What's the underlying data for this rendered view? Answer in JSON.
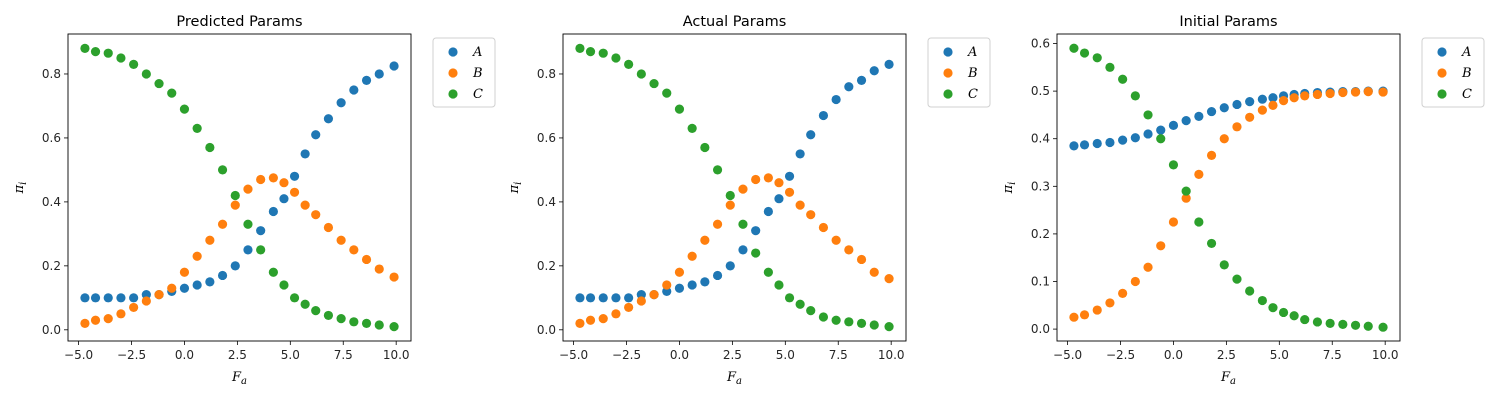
{
  "chart_data": [
    {
      "type": "scatter",
      "title": "Predicted Params",
      "xlabel": "F_a",
      "ylabel": "π_i",
      "xlim": [
        -5.5,
        10.7
      ],
      "ylim": [
        -0.035,
        0.925
      ],
      "xticks": [
        -5.0,
        -2.5,
        0.0,
        2.5,
        5.0,
        7.5,
        10.0
      ],
      "yticks": [
        0.0,
        0.2,
        0.4,
        0.6,
        0.8
      ],
      "legend_position": "outside-top-right",
      "grid": false,
      "series": [
        {
          "name": "A",
          "color": "#1f77b4",
          "points": [
            [
              -4.7,
              0.1
            ],
            [
              -4.2,
              0.1
            ],
            [
              -3.6,
              0.1
            ],
            [
              -3.0,
              0.1
            ],
            [
              -2.4,
              0.1
            ],
            [
              -1.8,
              0.11
            ],
            [
              -1.2,
              0.11
            ],
            [
              -0.6,
              0.12
            ],
            [
              0.0,
              0.13
            ],
            [
              0.6,
              0.14
            ],
            [
              1.2,
              0.15
            ],
            [
              1.8,
              0.17
            ],
            [
              2.4,
              0.2
            ],
            [
              3.0,
              0.25
            ],
            [
              3.6,
              0.31
            ],
            [
              4.2,
              0.37
            ],
            [
              4.7,
              0.41
            ],
            [
              5.2,
              0.48
            ],
            [
              5.7,
              0.55
            ],
            [
              6.2,
              0.61
            ],
            [
              6.8,
              0.66
            ],
            [
              7.4,
              0.71
            ],
            [
              8.0,
              0.75
            ],
            [
              8.6,
              0.78
            ],
            [
              9.2,
              0.8
            ],
            [
              9.9,
              0.825
            ]
          ]
        },
        {
          "name": "B",
          "color": "#ff7f0e",
          "points": [
            [
              -4.7,
              0.02
            ],
            [
              -4.2,
              0.03
            ],
            [
              -3.6,
              0.035
            ],
            [
              -3.0,
              0.05
            ],
            [
              -2.4,
              0.07
            ],
            [
              -1.8,
              0.09
            ],
            [
              -1.2,
              0.11
            ],
            [
              -0.6,
              0.13
            ],
            [
              0.0,
              0.18
            ],
            [
              0.6,
              0.23
            ],
            [
              1.2,
              0.28
            ],
            [
              1.8,
              0.33
            ],
            [
              2.4,
              0.39
            ],
            [
              3.0,
              0.44
            ],
            [
              3.6,
              0.47
            ],
            [
              4.2,
              0.475
            ],
            [
              4.7,
              0.46
            ],
            [
              5.2,
              0.43
            ],
            [
              5.7,
              0.39
            ],
            [
              6.2,
              0.36
            ],
            [
              6.8,
              0.32
            ],
            [
              7.4,
              0.28
            ],
            [
              8.0,
              0.25
            ],
            [
              8.6,
              0.22
            ],
            [
              9.2,
              0.19
            ],
            [
              9.9,
              0.165
            ]
          ]
        },
        {
          "name": "C",
          "color": "#2ca02c",
          "points": [
            [
              -4.7,
              0.88
            ],
            [
              -4.2,
              0.87
            ],
            [
              -3.6,
              0.865
            ],
            [
              -3.0,
              0.85
            ],
            [
              -2.4,
              0.83
            ],
            [
              -1.8,
              0.8
            ],
            [
              -1.2,
              0.77
            ],
            [
              -0.6,
              0.74
            ],
            [
              0.0,
              0.69
            ],
            [
              0.6,
              0.63
            ],
            [
              1.2,
              0.57
            ],
            [
              1.8,
              0.5
            ],
            [
              2.4,
              0.42
            ],
            [
              3.0,
              0.33
            ],
            [
              3.6,
              0.25
            ],
            [
              4.2,
              0.18
            ],
            [
              4.7,
              0.14
            ],
            [
              5.2,
              0.1
            ],
            [
              5.7,
              0.08
            ],
            [
              6.2,
              0.06
            ],
            [
              6.8,
              0.045
            ],
            [
              7.4,
              0.035
            ],
            [
              8.0,
              0.025
            ],
            [
              8.6,
              0.02
            ],
            [
              9.2,
              0.015
            ],
            [
              9.9,
              0.01
            ]
          ]
        }
      ]
    },
    {
      "type": "scatter",
      "title": "Actual Params",
      "xlabel": "F_a",
      "ylabel": "π_i",
      "xlim": [
        -5.5,
        10.7
      ],
      "ylim": [
        -0.035,
        0.925
      ],
      "xticks": [
        -5.0,
        -2.5,
        0.0,
        2.5,
        5.0,
        7.5,
        10.0
      ],
      "yticks": [
        0.0,
        0.2,
        0.4,
        0.6,
        0.8
      ],
      "legend_position": "outside-top-right",
      "grid": false,
      "series": [
        {
          "name": "A",
          "color": "#1f77b4",
          "points": [
            [
              -4.7,
              0.1
            ],
            [
              -4.2,
              0.1
            ],
            [
              -3.6,
              0.1
            ],
            [
              -3.0,
              0.1
            ],
            [
              -2.4,
              0.1
            ],
            [
              -1.8,
              0.11
            ],
            [
              -1.2,
              0.11
            ],
            [
              -0.6,
              0.12
            ],
            [
              0.0,
              0.13
            ],
            [
              0.6,
              0.14
            ],
            [
              1.2,
              0.15
            ],
            [
              1.8,
              0.17
            ],
            [
              2.4,
              0.2
            ],
            [
              3.0,
              0.25
            ],
            [
              3.6,
              0.31
            ],
            [
              4.2,
              0.37
            ],
            [
              4.7,
              0.41
            ],
            [
              5.2,
              0.48
            ],
            [
              5.7,
              0.55
            ],
            [
              6.2,
              0.61
            ],
            [
              6.8,
              0.67
            ],
            [
              7.4,
              0.72
            ],
            [
              8.0,
              0.76
            ],
            [
              8.6,
              0.78
            ],
            [
              9.2,
              0.81
            ],
            [
              9.9,
              0.83
            ]
          ]
        },
        {
          "name": "B",
          "color": "#ff7f0e",
          "points": [
            [
              -4.7,
              0.02
            ],
            [
              -4.2,
              0.03
            ],
            [
              -3.6,
              0.035
            ],
            [
              -3.0,
              0.05
            ],
            [
              -2.4,
              0.07
            ],
            [
              -1.8,
              0.09
            ],
            [
              -1.2,
              0.11
            ],
            [
              -0.6,
              0.14
            ],
            [
              0.0,
              0.18
            ],
            [
              0.6,
              0.23
            ],
            [
              1.2,
              0.28
            ],
            [
              1.8,
              0.33
            ],
            [
              2.4,
              0.39
            ],
            [
              3.0,
              0.44
            ],
            [
              3.6,
              0.47
            ],
            [
              4.2,
              0.475
            ],
            [
              4.7,
              0.46
            ],
            [
              5.2,
              0.43
            ],
            [
              5.7,
              0.39
            ],
            [
              6.2,
              0.36
            ],
            [
              6.8,
              0.32
            ],
            [
              7.4,
              0.28
            ],
            [
              8.0,
              0.25
            ],
            [
              8.6,
              0.22
            ],
            [
              9.2,
              0.18
            ],
            [
              9.9,
              0.16
            ]
          ]
        },
        {
          "name": "C",
          "color": "#2ca02c",
          "points": [
            [
              -4.7,
              0.88
            ],
            [
              -4.2,
              0.87
            ],
            [
              -3.6,
              0.865
            ],
            [
              -3.0,
              0.85
            ],
            [
              -2.4,
              0.83
            ],
            [
              -1.8,
              0.8
            ],
            [
              -1.2,
              0.77
            ],
            [
              -0.6,
              0.74
            ],
            [
              0.0,
              0.69
            ],
            [
              0.6,
              0.63
            ],
            [
              1.2,
              0.57
            ],
            [
              1.8,
              0.5
            ],
            [
              2.4,
              0.42
            ],
            [
              3.0,
              0.33
            ],
            [
              3.6,
              0.24
            ],
            [
              4.2,
              0.18
            ],
            [
              4.7,
              0.14
            ],
            [
              5.2,
              0.1
            ],
            [
              5.7,
              0.08
            ],
            [
              6.2,
              0.06
            ],
            [
              6.8,
              0.04
            ],
            [
              7.4,
              0.03
            ],
            [
              8.0,
              0.025
            ],
            [
              8.6,
              0.02
            ],
            [
              9.2,
              0.015
            ],
            [
              9.9,
              0.01
            ]
          ]
        }
      ]
    },
    {
      "type": "scatter",
      "title": "Initial Params",
      "xlabel": "F_a",
      "ylabel": "π_i",
      "xlim": [
        -5.5,
        10.7
      ],
      "ylim": [
        -0.025,
        0.62
      ],
      "xticks": [
        -5.0,
        -2.5,
        0.0,
        2.5,
        5.0,
        7.5,
        10.0
      ],
      "yticks": [
        0.0,
        0.1,
        0.2,
        0.3,
        0.4,
        0.5,
        0.6
      ],
      "legend_position": "outside-top-right",
      "grid": false,
      "series": [
        {
          "name": "A",
          "color": "#1f77b4",
          "points": [
            [
              -4.7,
              0.385
            ],
            [
              -4.2,
              0.387
            ],
            [
              -3.6,
              0.39
            ],
            [
              -3.0,
              0.392
            ],
            [
              -2.4,
              0.397
            ],
            [
              -1.8,
              0.402
            ],
            [
              -1.2,
              0.41
            ],
            [
              -0.6,
              0.418
            ],
            [
              0.0,
              0.428
            ],
            [
              0.6,
              0.438
            ],
            [
              1.2,
              0.447
            ],
            [
              1.8,
              0.457
            ],
            [
              2.4,
              0.465
            ],
            [
              3.0,
              0.472
            ],
            [
              3.6,
              0.478
            ],
            [
              4.2,
              0.483
            ],
            [
              4.7,
              0.486
            ],
            [
              5.2,
              0.49
            ],
            [
              5.7,
              0.493
            ],
            [
              6.2,
              0.495
            ],
            [
              6.8,
              0.497
            ],
            [
              7.4,
              0.498
            ],
            [
              8.0,
              0.499
            ],
            [
              8.6,
              0.499
            ],
            [
              9.2,
              0.5
            ],
            [
              9.9,
              0.5
            ]
          ]
        },
        {
          "name": "B",
          "color": "#ff7f0e",
          "points": [
            [
              -4.7,
              0.025
            ],
            [
              -4.2,
              0.03
            ],
            [
              -3.6,
              0.04
            ],
            [
              -3.0,
              0.055
            ],
            [
              -2.4,
              0.075
            ],
            [
              -1.8,
              0.1
            ],
            [
              -1.2,
              0.13
            ],
            [
              -0.6,
              0.175
            ],
            [
              0.0,
              0.225
            ],
            [
              0.6,
              0.275
            ],
            [
              1.2,
              0.325
            ],
            [
              1.8,
              0.365
            ],
            [
              2.4,
              0.4
            ],
            [
              3.0,
              0.425
            ],
            [
              3.6,
              0.445
            ],
            [
              4.2,
              0.46
            ],
            [
              4.7,
              0.47
            ],
            [
              5.2,
              0.48
            ],
            [
              5.7,
              0.486
            ],
            [
              6.2,
              0.49
            ],
            [
              6.8,
              0.493
            ],
            [
              7.4,
              0.495
            ],
            [
              8.0,
              0.497
            ],
            [
              8.6,
              0.498
            ],
            [
              9.2,
              0.499
            ],
            [
              9.9,
              0.498
            ]
          ]
        },
        {
          "name": "C",
          "color": "#2ca02c",
          "points": [
            [
              -4.7,
              0.59
            ],
            [
              -4.2,
              0.58
            ],
            [
              -3.6,
              0.57
            ],
            [
              -3.0,
              0.55
            ],
            [
              -2.4,
              0.525
            ],
            [
              -1.8,
              0.49
            ],
            [
              -1.2,
              0.45
            ],
            [
              -0.6,
              0.4
            ],
            [
              0.0,
              0.345
            ],
            [
              0.6,
              0.29
            ],
            [
              1.2,
              0.225
            ],
            [
              1.8,
              0.18
            ],
            [
              2.4,
              0.135
            ],
            [
              3.0,
              0.105
            ],
            [
              3.6,
              0.08
            ],
            [
              4.2,
              0.06
            ],
            [
              4.7,
              0.045
            ],
            [
              5.2,
              0.035
            ],
            [
              5.7,
              0.028
            ],
            [
              6.2,
              0.02
            ],
            [
              6.8,
              0.015
            ],
            [
              7.4,
              0.012
            ],
            [
              8.0,
              0.01
            ],
            [
              8.6,
              0.008
            ],
            [
              9.2,
              0.006
            ],
            [
              9.9,
              0.004
            ]
          ]
        }
      ]
    }
  ]
}
